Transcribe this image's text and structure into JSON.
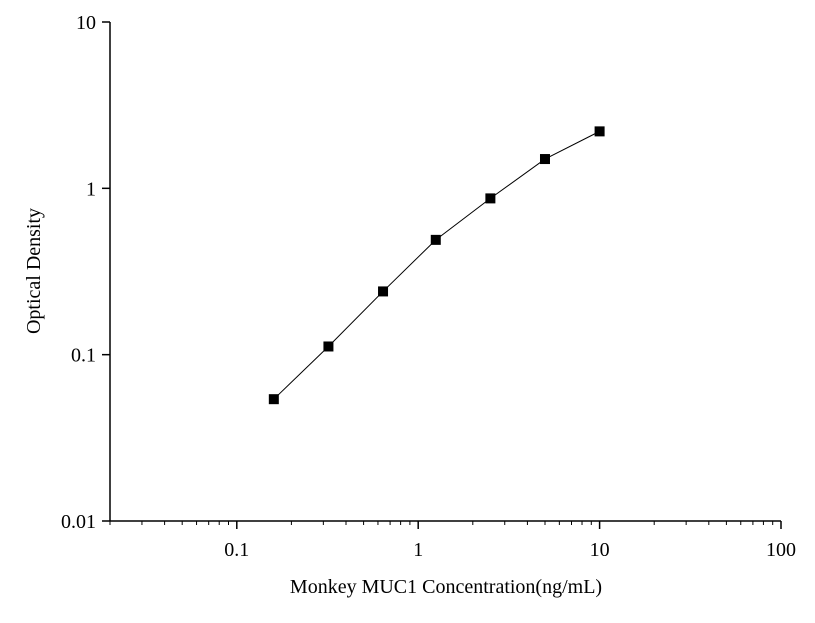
{
  "chart_data": {
    "type": "line",
    "x_label": "Monkey MUC1 Concentration(ng/mL)",
    "y_label": "Optical Density",
    "x": [
      0.16,
      0.32,
      0.64,
      1.25,
      2.5,
      5,
      10
    ],
    "series": [
      {
        "color": "#000000",
        "values": [
          0.054,
          0.112,
          0.24,
          0.49,
          0.87,
          1.5,
          2.2
        ]
      }
    ],
    "xscale": "log",
    "yscale": "log",
    "xlim": [
      0.02,
      100
    ],
    "ylim": [
      0.01,
      10
    ],
    "xticks": [
      0.1,
      1,
      10,
      100
    ],
    "xminorticks": [
      0.02,
      0.03,
      0.04,
      0.05,
      0.06,
      0.07,
      0.08,
      0.09,
      0.2,
      0.3,
      0.4,
      0.5,
      0.6,
      0.7,
      0.8,
      0.9,
      2,
      3,
      4,
      5,
      6,
      7,
      8,
      9,
      20,
      30,
      40,
      50,
      60,
      70,
      80,
      90
    ],
    "yticks": [
      0.01,
      0.1,
      1,
      10
    ]
  }
}
